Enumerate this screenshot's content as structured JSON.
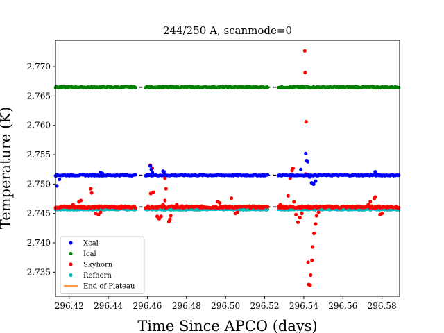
{
  "chart_data": {
    "type": "scatter",
    "title": "244/250 A, scanmode=0",
    "xlabel": "Time Since APCO (days)",
    "ylabel": "Temperature (K)",
    "xlim": [
      296.413,
      296.589
    ],
    "ylim": [
      2.7309,
      2.7745
    ],
    "xticks": [
      {
        "value": 296.42,
        "label": "296.42"
      },
      {
        "value": 296.44,
        "label": "296.44"
      },
      {
        "value": 296.46,
        "label": "296.46"
      },
      {
        "value": 296.48,
        "label": "296.48"
      },
      {
        "value": 296.5,
        "label": "296.50"
      },
      {
        "value": 296.52,
        "label": "296.52"
      },
      {
        "value": 296.54,
        "label": "296.54"
      },
      {
        "value": 296.56,
        "label": "296.56"
      },
      {
        "value": 296.58,
        "label": "296.58"
      }
    ],
    "yticks": [
      {
        "value": 2.735,
        "label": "2.735"
      },
      {
        "value": 2.74,
        "label": "2.740"
      },
      {
        "value": 2.745,
        "label": "2.745"
      },
      {
        "value": 2.75,
        "label": "2.750"
      },
      {
        "value": 2.755,
        "label": "2.755"
      },
      {
        "value": 2.76,
        "label": "2.760"
      },
      {
        "value": 2.765,
        "label": "2.765"
      },
      {
        "value": 2.77,
        "label": "2.770"
      }
    ],
    "grid": false,
    "legend_position": "lower-left",
    "segments": [
      [
        296.413,
        296.454
      ],
      [
        296.459,
        296.522
      ],
      [
        296.527,
        296.589
      ]
    ],
    "series": [
      {
        "name": "Xcal",
        "color": "#0000ff",
        "marker": "dot",
        "base": 2.7515,
        "events": [
          {
            "x": 296.4137,
            "y": 2.7497
          },
          {
            "x": 296.415,
            "y": 2.7508
          },
          {
            "x": 296.436,
            "y": 2.752
          },
          {
            "x": 296.437,
            "y": 2.7518
          },
          {
            "x": 296.4615,
            "y": 2.7531
          },
          {
            "x": 296.462,
            "y": 2.7525
          },
          {
            "x": 296.4625,
            "y": 2.752
          },
          {
            "x": 296.468,
            "y": 2.7522
          },
          {
            "x": 296.4685,
            "y": 2.7521
          },
          {
            "x": 296.5385,
            "y": 2.7525
          },
          {
            "x": 296.541,
            "y": 2.7552
          },
          {
            "x": 296.5415,
            "y": 2.754
          },
          {
            "x": 296.542,
            "y": 2.7538
          },
          {
            "x": 296.543,
            "y": 2.7512
          },
          {
            "x": 296.544,
            "y": 2.7502
          },
          {
            "x": 296.545,
            "y": 2.75
          },
          {
            "x": 296.546,
            "y": 2.7505
          },
          {
            "x": 296.5765,
            "y": 2.7521
          }
        ]
      },
      {
        "name": "Ical",
        "color": "#008000",
        "marker": "dot",
        "base": 2.7665,
        "events": []
      },
      {
        "name": "Skyhorn",
        "color": "#ff0000",
        "marker": "dot",
        "base": 2.7461,
        "events": [
          {
            "x": 296.422,
            "y": 2.7465
          },
          {
            "x": 296.425,
            "y": 2.747
          },
          {
            "x": 296.426,
            "y": 2.7472
          },
          {
            "x": 296.431,
            "y": 2.7492
          },
          {
            "x": 296.4315,
            "y": 2.7485
          },
          {
            "x": 296.4335,
            "y": 2.745
          },
          {
            "x": 296.435,
            "y": 2.7448
          },
          {
            "x": 296.436,
            "y": 2.7452
          },
          {
            "x": 296.4615,
            "y": 2.7532
          },
          {
            "x": 296.4617,
            "y": 2.7484
          },
          {
            "x": 296.4625,
            "y": 2.7527
          },
          {
            "x": 296.463,
            "y": 2.7486
          },
          {
            "x": 296.465,
            "y": 2.7445
          },
          {
            "x": 296.466,
            "y": 2.7441
          },
          {
            "x": 296.467,
            "y": 2.7445
          },
          {
            "x": 296.468,
            "y": 2.7465
          },
          {
            "x": 296.469,
            "y": 2.7472
          },
          {
            "x": 296.469,
            "y": 2.751
          },
          {
            "x": 296.4695,
            "y": 2.7492
          },
          {
            "x": 296.471,
            "y": 2.7436
          },
          {
            "x": 296.4715,
            "y": 2.744
          },
          {
            "x": 296.472,
            "y": 2.7446
          },
          {
            "x": 296.475,
            "y": 2.7465
          },
          {
            "x": 296.496,
            "y": 2.747
          },
          {
            "x": 296.497,
            "y": 2.7468
          },
          {
            "x": 296.5005,
            "y": 2.746
          },
          {
            "x": 296.503,
            "y": 2.7476
          },
          {
            "x": 296.505,
            "y": 2.745
          },
          {
            "x": 296.506,
            "y": 2.7452
          },
          {
            "x": 296.528,
            "y": 2.7465
          },
          {
            "x": 296.53,
            "y": 2.746
          },
          {
            "x": 296.532,
            "y": 2.748
          },
          {
            "x": 296.533,
            "y": 2.751
          },
          {
            "x": 296.534,
            "y": 2.7523
          },
          {
            "x": 296.5345,
            "y": 2.7527
          },
          {
            "x": 296.535,
            "y": 2.747
          },
          {
            "x": 296.536,
            "y": 2.7448
          },
          {
            "x": 296.537,
            "y": 2.7435
          },
          {
            "x": 296.538,
            "y": 2.7443
          },
          {
            "x": 296.539,
            "y": 2.745
          },
          {
            "x": 296.5405,
            "y": 2.7727
          },
          {
            "x": 296.5407,
            "y": 2.769
          },
          {
            "x": 296.5412,
            "y": 2.7606
          },
          {
            "x": 296.541,
            "y": 2.7517
          },
          {
            "x": 296.5422,
            "y": 2.7367
          },
          {
            "x": 296.5425,
            "y": 2.7329
          },
          {
            "x": 296.5432,
            "y": 2.7328
          },
          {
            "x": 296.5435,
            "y": 2.7345
          },
          {
            "x": 296.5442,
            "y": 2.737
          },
          {
            "x": 296.5445,
            "y": 2.7393
          },
          {
            "x": 296.5452,
            "y": 2.7416
          },
          {
            "x": 296.546,
            "y": 2.7432
          },
          {
            "x": 296.5465,
            "y": 2.7446
          },
          {
            "x": 296.5475,
            "y": 2.7452
          },
          {
            "x": 296.573,
            "y": 2.7465
          },
          {
            "x": 296.574,
            "y": 2.747
          },
          {
            "x": 296.576,
            "y": 2.7475
          },
          {
            "x": 296.5765,
            "y": 2.7478
          },
          {
            "x": 296.579,
            "y": 2.7448
          },
          {
            "x": 296.58,
            "y": 2.745
          }
        ]
      },
      {
        "name": "Refhorn",
        "color": "#00bfbf",
        "marker": "dot",
        "base": 2.7457,
        "events": []
      },
      {
        "name": "End of Plateau",
        "color": "#ff7f0e",
        "marker": "line",
        "base": null,
        "events": []
      }
    ],
    "plateau_lines": [
      2.7665,
      2.7515,
      2.7461
    ],
    "plateau_gaps": [
      [
        296.4525,
        296.4595
      ],
      [
        296.521,
        296.528
      ]
    ]
  }
}
